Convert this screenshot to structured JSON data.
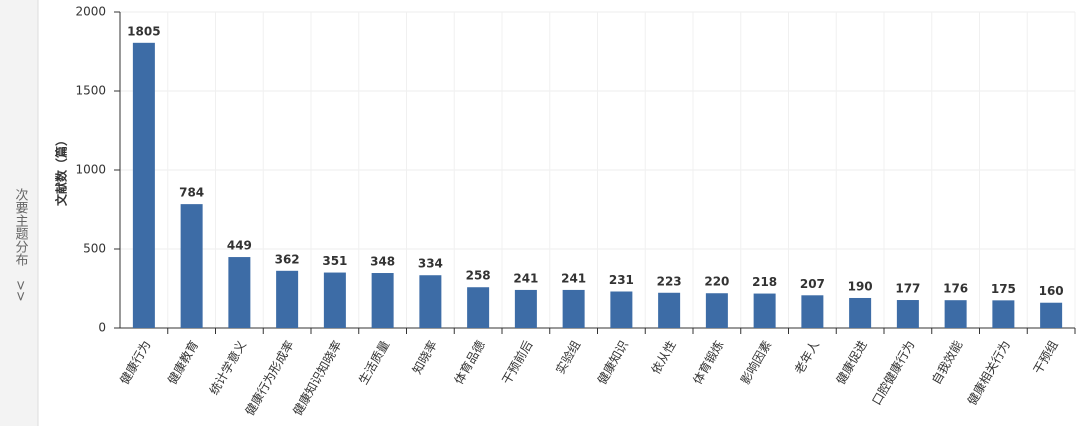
{
  "side_panel": {
    "label": "次要主题分布",
    "toggle": ">>"
  },
  "chart_data": {
    "type": "bar",
    "y_label": "文献数（篇）",
    "categories": [
      "健康行为",
      "健康教育",
      "统计学意义",
      "健康行为形成率",
      "健康知识知晓率",
      "生活质量",
      "知晓率",
      "体育品德",
      "干预前后",
      "实验组",
      "健康知识",
      "依从性",
      "体育锻炼",
      "影响因素",
      "老年人",
      "健康促进",
      "口腔健康行为",
      "自我效能",
      "健康相关行为",
      "干预组"
    ],
    "values": [
      1805,
      784,
      449,
      362,
      351,
      348,
      334,
      258,
      241,
      241,
      231,
      223,
      220,
      218,
      207,
      190,
      177,
      176,
      175,
      160
    ],
    "color": "#3d6ca6",
    "ylim": [
      0,
      2000
    ],
    "yticks": [
      0,
      500,
      1000,
      1500,
      2000
    ],
    "grid": true
  }
}
